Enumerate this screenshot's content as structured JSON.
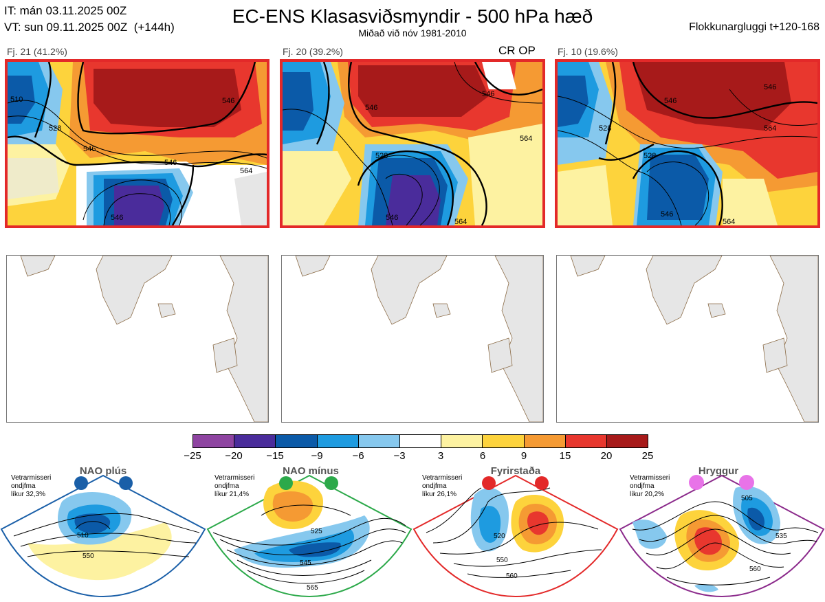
{
  "header": {
    "it_line": "IT: mán 03.11.2025 00Z",
    "vt_line": "VT: sun 09.11.2025 00Z  (+144h)",
    "title": "EC-ENS Klasasviðsmyndir - 500 hPa hæð",
    "subtitle": "Miðað við nóv 1981-2010",
    "window": "Flokkunargluggi t+120-168"
  },
  "clusters": [
    {
      "label": "Fj. 21 (41.2%)",
      "tag": "",
      "contours": [
        "510",
        "528",
        "546",
        "546",
        "546",
        "564",
        "546",
        "564",
        "546",
        "540"
      ]
    },
    {
      "label": "Fj. 20 (39.2%)",
      "tag": "CR OP",
      "contours": [
        "546",
        "528",
        "546",
        "546",
        "564",
        "564"
      ]
    },
    {
      "label": "Fj. 10 (19.6%)",
      "tag": "",
      "contours": [
        "546",
        "528",
        "546",
        "564",
        "528",
        "546",
        "564",
        "546"
      ]
    }
  ],
  "colorbar": {
    "ticks": [
      "−25",
      "−20",
      "−15",
      "−9",
      "−6",
      "−3",
      "3",
      "6",
      "9",
      "15",
      "20",
      "25"
    ],
    "colors": [
      "#8e44a1",
      "#4a2c9b",
      "#0b5aa8",
      "#1e9be0",
      "#86c8ee",
      "#ffffff",
      "#fdf2a1",
      "#fdd33c",
      "#f59a33",
      "#e8372e",
      "#a71a1a"
    ]
  },
  "regimes": [
    {
      "name": "NAO plús",
      "note_line1": "Vetrarmisseri",
      "note_line2": "ondjfma",
      "note_line3": "líkur 32,3%",
      "contours": [
        "510",
        "550"
      ],
      "border": "#1a5fa8",
      "dot": "#1a5fa8"
    },
    {
      "name": "NAO mínus",
      "note_line1": "Vetrarmisseri",
      "note_line2": "ondjfma",
      "note_line3": "líkur 21,4%",
      "contours": [
        "525",
        "545",
        "565"
      ],
      "border": "#2ca94a",
      "dot": "#2ca94a"
    },
    {
      "name": "Fyrirstaða",
      "note_line1": "Vetrarmisseri",
      "note_line2": "ondjfma",
      "note_line3": "líkur 26,1%",
      "contours": [
        "520",
        "550",
        "560"
      ],
      "border": "#e32929",
      "dot": "#e32929"
    },
    {
      "name": "Hryggur",
      "note_line1": "Vetrarmisseri",
      "note_line2": "ondjfma",
      "note_line3": "líkur 20,2%",
      "contours": [
        "505",
        "535",
        "560"
      ],
      "border": "#8b2a8b",
      "dot": "#e873e8"
    }
  ]
}
